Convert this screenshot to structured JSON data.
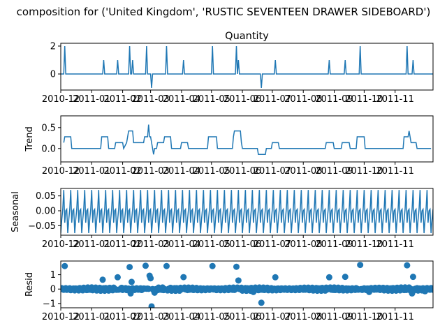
{
  "figure": {
    "suptitle": "composition for ('United Kingdom', 'RUSTIC  SEVENTEEN DRAWER SIDEBOARD')",
    "line_color": "#1f77b4"
  },
  "chart_data": [
    {
      "type": "line",
      "title": "Quantity",
      "ylabel": "",
      "xlim": [
        "2010-12-01",
        "2011-12-09"
      ],
      "ylim": [
        -1.15,
        2.2
      ],
      "yticks": [
        0,
        2
      ],
      "ytick_labels": [
        "0",
        "2"
      ],
      "xtick_labels": [
        "2010-12",
        "2011-01",
        "2011-02",
        "2011-03",
        "2011-04",
        "2011-05",
        "2011-06",
        "2011-07",
        "2011-08",
        "2011-09",
        "2011-10",
        "2011-11"
      ],
      "baseline": 0,
      "spikes": [
        {
          "x": "2010-12-05",
          "y": 2
        },
        {
          "x": "2011-01-13",
          "y": 1
        },
        {
          "x": "2011-01-27",
          "y": 1
        },
        {
          "x": "2011-02-08",
          "y": 2
        },
        {
          "x": "2011-02-11",
          "y": 1
        },
        {
          "x": "2011-02-25",
          "y": 2
        },
        {
          "x": "2011-03-02",
          "y": -1
        },
        {
          "x": "2011-03-17",
          "y": 2
        },
        {
          "x": "2011-04-03",
          "y": 1
        },
        {
          "x": "2011-05-02",
          "y": 2
        },
        {
          "x": "2011-05-26",
          "y": 2
        },
        {
          "x": "2011-05-28",
          "y": 1
        },
        {
          "x": "2011-06-20",
          "y": -1
        },
        {
          "x": "2011-07-04",
          "y": 1
        },
        {
          "x": "2011-08-27",
          "y": 1
        },
        {
          "x": "2011-09-12",
          "y": 1
        },
        {
          "x": "2011-09-27",
          "y": 2
        },
        {
          "x": "2011-11-13",
          "y": 2
        },
        {
          "x": "2011-11-19",
          "y": 1
        }
      ]
    },
    {
      "type": "line",
      "title": "",
      "ylabel": "Trend",
      "xlim": [
        "2010-12-01",
        "2011-12-09"
      ],
      "ylim": [
        -0.32,
        0.78
      ],
      "yticks": [
        0,
        0.5
      ],
      "ytick_labels": [
        "0.0",
        "0.5"
      ],
      "xtick_labels": [
        "2010-12",
        "2011-01",
        "2011-02",
        "2011-03",
        "2011-04",
        "2011-05",
        "2011-06",
        "2011-07",
        "2011-08",
        "2011-09",
        "2011-10",
        "2011-11"
      ],
      "points": [
        [
          "2010-12-04",
          0.14
        ],
        [
          "2010-12-05",
          0.28
        ],
        [
          "2010-12-11",
          0.28
        ],
        [
          "2010-12-12",
          0
        ],
        [
          "2011-01-10",
          0
        ],
        [
          "2011-01-11",
          0.28
        ],
        [
          "2011-01-17",
          0.28
        ],
        [
          "2011-01-18",
          0
        ],
        [
          "2011-01-24",
          0
        ],
        [
          "2011-01-25",
          0.14
        ],
        [
          "2011-02-01",
          0.14
        ],
        [
          "2011-02-02",
          0
        ],
        [
          "2011-02-05",
          0.14
        ],
        [
          "2011-02-06",
          0.28
        ],
        [
          "2011-02-07",
          0.42
        ],
        [
          "2011-02-11",
          0.42
        ],
        [
          "2011-02-12",
          0.14
        ],
        [
          "2011-02-22",
          0.14
        ],
        [
          "2011-02-23",
          0.28
        ],
        [
          "2011-02-26",
          0.28
        ],
        [
          "2011-02-27",
          0.57
        ],
        [
          "2011-02-28",
          0.28
        ],
        [
          "2011-03-01",
          0.28
        ],
        [
          "2011-03-02",
          0.14
        ],
        [
          "2011-03-04",
          -0.14
        ],
        [
          "2011-03-05",
          0
        ],
        [
          "2011-03-07",
          0
        ],
        [
          "2011-03-08",
          0.14
        ],
        [
          "2011-03-14",
          0.14
        ],
        [
          "2011-03-15",
          0.28
        ],
        [
          "2011-03-21",
          0.28
        ],
        [
          "2011-03-22",
          0
        ],
        [
          "2011-03-31",
          0
        ],
        [
          "2011-04-01",
          0.14
        ],
        [
          "2011-04-07",
          0.14
        ],
        [
          "2011-04-08",
          0
        ],
        [
          "2011-04-27",
          0
        ],
        [
          "2011-04-28",
          0.28
        ],
        [
          "2011-05-06",
          0.28
        ],
        [
          "2011-05-07",
          0
        ],
        [
          "2011-05-22",
          0
        ],
        [
          "2011-05-23",
          0.28
        ],
        [
          "2011-05-24",
          0.42
        ],
        [
          "2011-05-30",
          0.42
        ],
        [
          "2011-05-31",
          0.14
        ],
        [
          "2011-06-01",
          0
        ],
        [
          "2011-06-16",
          0
        ],
        [
          "2011-06-17",
          -0.14
        ],
        [
          "2011-06-24",
          -0.14
        ],
        [
          "2011-06-25",
          0
        ],
        [
          "2011-06-30",
          0
        ],
        [
          "2011-07-01",
          0.14
        ],
        [
          "2011-07-07",
          0.14
        ],
        [
          "2011-07-08",
          0
        ],
        [
          "2011-08-23",
          0
        ],
        [
          "2011-08-24",
          0.14
        ],
        [
          "2011-08-31",
          0.14
        ],
        [
          "2011-09-01",
          0
        ],
        [
          "2011-09-08",
          0
        ],
        [
          "2011-09-09",
          0.14
        ],
        [
          "2011-09-16",
          0.14
        ],
        [
          "2011-09-17",
          0
        ],
        [
          "2011-09-23",
          0
        ],
        [
          "2011-09-24",
          0.28
        ],
        [
          "2011-10-01",
          0.28
        ],
        [
          "2011-10-02",
          0
        ],
        [
          "2011-11-09",
          0
        ],
        [
          "2011-11-10",
          0.28
        ],
        [
          "2011-11-14",
          0.28
        ],
        [
          "2011-11-15",
          0.42
        ],
        [
          "2011-11-16",
          0.28
        ],
        [
          "2011-11-17",
          0.14
        ],
        [
          "2011-11-22",
          0.14
        ],
        [
          "2011-11-23",
          0
        ],
        [
          "2011-12-07",
          0
        ]
      ]
    },
    {
      "type": "line",
      "title": "",
      "ylabel": "Seasonal",
      "xlim": [
        "2010-12-01",
        "2011-12-09"
      ],
      "ylim": [
        -0.082,
        0.075
      ],
      "yticks": [
        -0.05,
        0,
        0.05
      ],
      "ytick_labels": [
        "−0.05",
        "0.00",
        "0.05"
      ],
      "xtick_labels": [
        "2010-12",
        "2011-01",
        "2011-02",
        "2011-03",
        "2011-04",
        "2011-05",
        "2011-06",
        "2011-07",
        "2011-08",
        "2011-09",
        "2011-10",
        "2011-11"
      ],
      "period_days": 7,
      "weekly_pattern": [
        -0.075,
        -0.03,
        0.005,
        0.07,
        -0.04,
        0.0,
        0.005
      ],
      "start": "2010-12-01",
      "end": "2011-12-09"
    },
    {
      "type": "scatter",
      "title": "",
      "ylabel": "Resid",
      "xlim": [
        "2010-12-01",
        "2011-12-09"
      ],
      "ylim": [
        -1.3,
        1.95
      ],
      "yticks": [
        -1,
        0,
        1
      ],
      "ytick_labels": [
        "−1",
        "0",
        "1"
      ],
      "xtick_labels": [
        "2010-12",
        "2011-01",
        "2011-02",
        "2011-03",
        "2011-04",
        "2011-05",
        "2011-06",
        "2011-07",
        "2011-08",
        "2011-09",
        "2011-10",
        "2011-11"
      ],
      "outliers": [
        [
          "2010-12-05",
          1.6
        ],
        [
          "2011-01-12",
          0.65
        ],
        [
          "2011-01-27",
          0.82
        ],
        [
          "2011-02-08",
          1.53
        ],
        [
          "2011-02-10",
          0.5
        ],
        [
          "2011-02-09",
          -0.3
        ],
        [
          "2011-02-24",
          1.62
        ],
        [
          "2011-02-28",
          0.93
        ],
        [
          "2011-03-01",
          0.75
        ],
        [
          "2011-03-02",
          -1.2
        ],
        [
          "2011-03-17",
          1.6
        ],
        [
          "2011-04-03",
          0.83
        ],
        [
          "2011-05-02",
          1.6
        ],
        [
          "2011-05-26",
          1.55
        ],
        [
          "2011-05-28",
          0.6
        ],
        [
          "2011-06-20",
          -0.95
        ],
        [
          "2011-07-04",
          0.82
        ],
        [
          "2011-08-27",
          0.82
        ],
        [
          "2011-09-12",
          0.85
        ],
        [
          "2011-09-27",
          1.68
        ],
        [
          "2011-11-13",
          1.65
        ],
        [
          "2011-11-19",
          0.85
        ],
        [
          "2011-11-18",
          -0.3
        ],
        [
          "2011-03-05",
          -0.25
        ],
        [
          "2011-06-12",
          -0.2
        ],
        [
          "2011-10-06",
          -0.2
        ],
        [
          "2011-12-01",
          -0.15
        ]
      ],
      "baseline_start": "2010-12-01",
      "baseline_end": "2011-12-09",
      "noise_amplitude": 0.12
    }
  ]
}
